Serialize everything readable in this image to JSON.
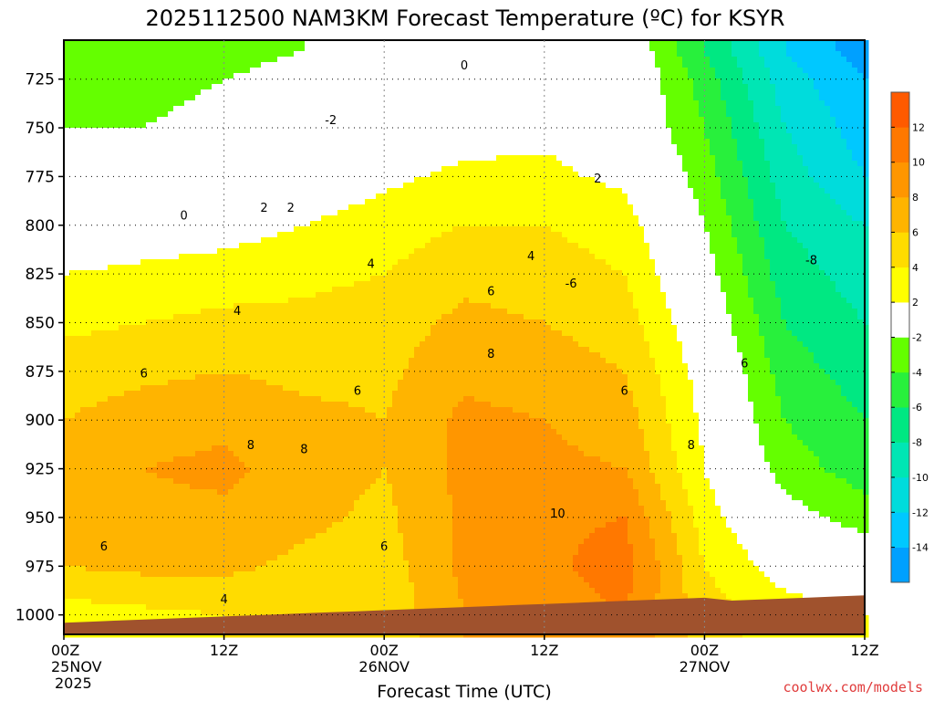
{
  "chart_data": {
    "type": "heatmap",
    "title": "2025112500 NAM3KM Forecast Temperature (ºC) for KSYR",
    "xlabel": "Forecast Time (UTC)",
    "x_ticks": [
      {
        "hour": 0,
        "label": "00Z",
        "sub": "25NOV",
        "sub2": "2025"
      },
      {
        "hour": 12,
        "label": "12Z",
        "sub": "",
        "sub2": ""
      },
      {
        "hour": 24,
        "label": "00Z",
        "sub": "26NOV",
        "sub2": ""
      },
      {
        "hour": 36,
        "label": "12Z",
        "sub": "",
        "sub2": ""
      },
      {
        "hour": 48,
        "label": "00Z",
        "sub": "27NOV",
        "sub2": ""
      },
      {
        "hour": 60,
        "label": "12Z",
        "sub": "",
        "sub2": ""
      }
    ],
    "x_range_hours": [
      0,
      60
    ],
    "y_ticks": [
      725,
      750,
      775,
      800,
      825,
      850,
      875,
      900,
      925,
      950,
      975,
      1000
    ],
    "y_range_hpa": [
      705,
      1010
    ],
    "colorbar": {
      "levels": [
        -16,
        -14,
        -12,
        -10,
        -8,
        -6,
        -4,
        -2,
        2,
        4,
        6,
        8,
        10,
        12,
        14
      ],
      "tick_labels": [
        "-14",
        "-12",
        "-10",
        "-8",
        "-6",
        "-4",
        "-2",
        "2",
        "4",
        "6",
        "8",
        "10",
        "12"
      ],
      "colors": [
        "#00a0ff",
        "#00c8ff",
        "#00dcdc",
        "#00e6b4",
        "#00e882",
        "#28f03c",
        "#64ff00",
        "#ffffff",
        "#ffff00",
        "#ffdc00",
        "#ffb400",
        "#ff9600",
        "#ff7800",
        "#ff5a00"
      ]
    },
    "temperature_grid": {
      "hours": [
        0,
        6,
        12,
        18,
        24,
        30,
        36,
        42,
        48,
        54,
        60
      ],
      "pressure_hpa": [
        710,
        725,
        750,
        775,
        800,
        825,
        850,
        875,
        900,
        925,
        950,
        975,
        1000
      ],
      "values_degC": [
        [
          -3,
          -3,
          -2.5,
          -2,
          -1,
          0.5,
          1,
          0,
          -6,
          -12,
          -15
        ],
        [
          -2.5,
          -2.5,
          -2,
          -1.5,
          -0.5,
          0.5,
          1,
          0.5,
          -5,
          -11,
          -14
        ],
        [
          -2,
          -2,
          -1.5,
          -1,
          0,
          1,
          1.5,
          0.5,
          -4,
          -10,
          -13
        ],
        [
          -1,
          -0.5,
          0,
          0.5,
          1.5,
          2.5,
          2.5,
          1.5,
          -3,
          -9,
          -12
        ],
        [
          0,
          0.5,
          1,
          2,
          3,
          4,
          4,
          3,
          -2,
          -8,
          -10
        ],
        [
          2,
          2.5,
          3,
          3.5,
          4,
          5.5,
          5,
          4,
          -1,
          -7,
          -9
        ],
        [
          3.5,
          4,
          4.5,
          4.5,
          5,
          6.5,
          6,
          5,
          0,
          -6,
          -8
        ],
        [
          5,
          5.5,
          6,
          5.5,
          5.5,
          7.5,
          7,
          6,
          1,
          -5,
          -7
        ],
        [
          6,
          7,
          7.5,
          6.5,
          6,
          8.5,
          8,
          7,
          1.5,
          -4,
          -6
        ],
        [
          6.5,
          8,
          8.5,
          7,
          6,
          8.5,
          8.5,
          8,
          2,
          -3,
          -5
        ],
        [
          6.5,
          7.5,
          7.5,
          6.5,
          5.5,
          8.5,
          9.5,
          10,
          3,
          -1,
          -3
        ],
        [
          6,
          6.5,
          6.5,
          5.5,
          5,
          8.5,
          9.5,
          11,
          4,
          1,
          0
        ],
        [
          3,
          3.5,
          4,
          4,
          4.5,
          8,
          9,
          10,
          5,
          3,
          2
        ]
      ]
    },
    "terrain_color": "#a0522d",
    "contour_labels": [
      "0",
      "-2",
      "2",
      "0",
      "2",
      "4",
      "4",
      "6",
      "4",
      "2",
      "6",
      "6",
      "8",
      "6",
      "8",
      "8",
      "6",
      "10",
      "8",
      "6",
      "4",
      "6",
      "-8",
      "-6"
    ]
  },
  "credit": "coolwx.com/models"
}
